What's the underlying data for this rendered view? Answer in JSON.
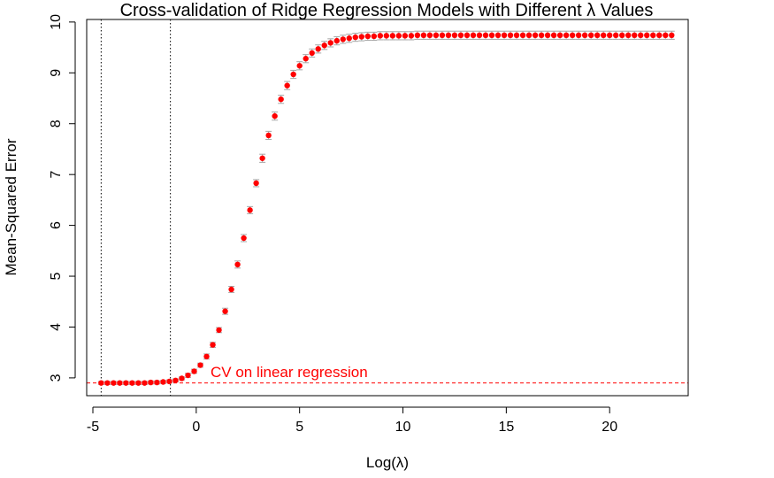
{
  "chart_data": {
    "type": "scatter",
    "title": "Cross-validation of Ridge Regression Models with Different  λ  Values",
    "xlabel": "Log(λ)",
    "ylabel": "Mean-Squared Error",
    "xlim": [
      -5.3,
      23.8
    ],
    "ylim": [
      2.65,
      10.05
    ],
    "x_ticks": [
      -5,
      0,
      5,
      10,
      15,
      20
    ],
    "y_ticks": [
      3,
      4,
      5,
      6,
      7,
      8,
      9,
      10
    ],
    "x_tick_labels": [
      "-5",
      "0",
      "5",
      "10",
      "15",
      "20"
    ],
    "y_tick_labels": [
      "3",
      "4",
      "5",
      "6",
      "7",
      "8",
      "9",
      "10"
    ],
    "grid": false,
    "point_color": "#ff0000",
    "errorbar_color": "#a6a6a6",
    "reference_line": {
      "label": "CV on linear regression",
      "y": 2.9,
      "style": "dashed",
      "color": "#ff0000"
    },
    "vertical_lines": [
      {
        "x": -4.6,
        "style": "dotted",
        "color": "#000000"
      },
      {
        "x": -1.25,
        "style": "dotted",
        "color": "#000000"
      }
    ],
    "series": [
      {
        "x": [
          -4.6,
          -4.3,
          -4.0,
          -3.7,
          -3.4,
          -3.1,
          -2.8,
          -2.5,
          -2.2,
          -1.9,
          -1.6,
          -1.3,
          -1.0,
          -0.7,
          -0.4,
          -0.1,
          0.2,
          0.5,
          0.8,
          1.1,
          1.4,
          1.7,
          2.0,
          2.3,
          2.6,
          2.9,
          3.2,
          3.5,
          3.8,
          4.1,
          4.4,
          4.7,
          5.0,
          5.3,
          5.6,
          5.9,
          6.2,
          6.5,
          6.8,
          7.1,
          7.4,
          7.7,
          8.0,
          8.3,
          8.6,
          8.9,
          9.2,
          9.5,
          9.8,
          10.1,
          10.4,
          10.7,
          11.0,
          11.3,
          11.6,
          11.9,
          12.2,
          12.5,
          12.8,
          13.1,
          13.4,
          13.7,
          14.0,
          14.3,
          14.6,
          14.9,
          15.2,
          15.5,
          15.8,
          16.1,
          16.4,
          16.7,
          17.0,
          17.3,
          17.6,
          17.9,
          18.2,
          18.5,
          18.8,
          19.1,
          19.4,
          19.7,
          20.0,
          20.3,
          20.6,
          20.9,
          21.2,
          21.5,
          21.8,
          22.1,
          22.4,
          22.7,
          23.0
        ],
        "y": [
          2.9,
          2.9,
          2.9,
          2.9,
          2.9,
          2.9,
          2.9,
          2.9,
          2.91,
          2.91,
          2.92,
          2.93,
          2.95,
          2.99,
          3.05,
          3.13,
          3.25,
          3.42,
          3.65,
          3.94,
          4.31,
          4.74,
          5.23,
          5.75,
          6.3,
          6.83,
          7.32,
          7.77,
          8.15,
          8.48,
          8.75,
          8.97,
          9.14,
          9.28,
          9.39,
          9.47,
          9.54,
          9.59,
          9.63,
          9.66,
          9.68,
          9.7,
          9.71,
          9.72,
          9.72,
          9.73,
          9.73,
          9.73,
          9.73,
          9.73,
          9.73,
          9.74,
          9.74,
          9.74,
          9.74,
          9.74,
          9.74,
          9.74,
          9.74,
          9.74,
          9.74,
          9.74,
          9.74,
          9.74,
          9.74,
          9.74,
          9.74,
          9.74,
          9.74,
          9.74,
          9.74,
          9.74,
          9.74,
          9.74,
          9.74,
          9.74,
          9.74,
          9.74,
          9.74,
          9.74,
          9.74,
          9.74,
          9.74,
          9.74,
          9.74,
          9.74,
          9.74,
          9.74,
          9.74,
          9.74,
          9.74,
          9.74,
          9.74
        ],
        "error": [
          0.03,
          0.03,
          0.03,
          0.03,
          0.03,
          0.03,
          0.03,
          0.03,
          0.03,
          0.03,
          0.03,
          0.03,
          0.03,
          0.03,
          0.04,
          0.04,
          0.04,
          0.05,
          0.05,
          0.05,
          0.06,
          0.06,
          0.07,
          0.07,
          0.07,
          0.07,
          0.08,
          0.08,
          0.08,
          0.08,
          0.08,
          0.08,
          0.08,
          0.08,
          0.08,
          0.08,
          0.08,
          0.08,
          0.08,
          0.08,
          0.08,
          0.08,
          0.08,
          0.08,
          0.08,
          0.08,
          0.08,
          0.08,
          0.08,
          0.08,
          0.08,
          0.08,
          0.08,
          0.08,
          0.08,
          0.08,
          0.08,
          0.08,
          0.08,
          0.08,
          0.08,
          0.08,
          0.08,
          0.08,
          0.08,
          0.08,
          0.08,
          0.08,
          0.08,
          0.08,
          0.08,
          0.08,
          0.08,
          0.08,
          0.08,
          0.08,
          0.08,
          0.08,
          0.08,
          0.08,
          0.08,
          0.08,
          0.08,
          0.08,
          0.08,
          0.08,
          0.08,
          0.08,
          0.08,
          0.08,
          0.08,
          0.08,
          0.08
        ]
      }
    ]
  }
}
